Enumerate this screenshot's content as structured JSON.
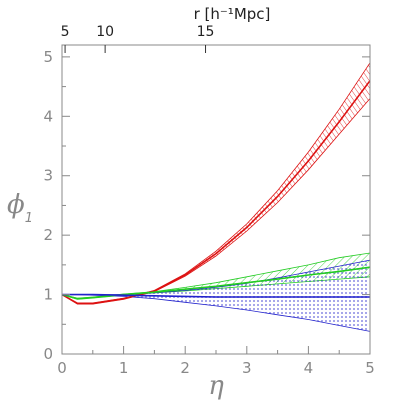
{
  "chart_data": {
    "type": "line",
    "title": "",
    "xlabel": "η",
    "ylabel_symbol": "ϕ",
    "ylabel_subscript": "1",
    "top_axis_label": "r [h⁻¹Mpc]",
    "xlim": [
      0,
      5
    ],
    "ylim": [
      0,
      5.2
    ],
    "x_ticks": [
      0,
      1,
      2,
      3,
      4,
      5
    ],
    "y_ticks": [
      0,
      1,
      2,
      3,
      4,
      5
    ],
    "top_ticks": [
      {
        "label": "5",
        "eta": 0.05
      },
      {
        "label": "10",
        "eta": 0.7
      },
      {
        "label": "15",
        "eta": 2.33
      }
    ],
    "grid": false,
    "legend": "none",
    "series": [
      {
        "color": "#dd1111",
        "x": [
          0,
          0.25,
          0.5,
          1.0,
          1.5,
          2.0,
          2.5,
          3.0,
          3.5,
          4.0,
          4.5,
          5.0
        ],
        "y": [
          1.0,
          0.85,
          0.85,
          0.93,
          1.06,
          1.33,
          1.69,
          2.13,
          2.65,
          3.25,
          3.91,
          4.6
        ],
        "band_low": [
          1.0,
          0.84,
          0.84,
          0.92,
          1.05,
          1.31,
          1.65,
          2.07,
          2.55,
          3.1,
          3.7,
          4.3
        ],
        "band_high": [
          1.0,
          0.86,
          0.86,
          0.94,
          1.07,
          1.35,
          1.73,
          2.19,
          2.75,
          3.4,
          4.12,
          4.9
        ]
      },
      {
        "color": "#22cc22",
        "x": [
          0,
          0.25,
          0.5,
          1.0,
          1.5,
          2.0,
          2.5,
          3.0,
          3.5,
          4.0,
          4.5,
          5.0
        ],
        "y": [
          1.0,
          0.93,
          0.95,
          1.0,
          1.04,
          1.09,
          1.14,
          1.2,
          1.26,
          1.33,
          1.39,
          1.46
        ],
        "band_low": [
          1.0,
          0.92,
          0.94,
          0.99,
          1.03,
          1.06,
          1.1,
          1.14,
          1.18,
          1.22,
          1.26,
          1.3
        ],
        "band_high": [
          1.0,
          0.94,
          0.96,
          1.01,
          1.05,
          1.12,
          1.2,
          1.3,
          1.4,
          1.5,
          1.62,
          1.7
        ]
      },
      {
        "color": "#2222cc",
        "x": [
          0,
          0.25,
          0.5,
          1.0,
          1.5,
          2.0,
          2.5,
          3.0,
          3.5,
          4.0,
          4.5,
          5.0
        ],
        "y": [
          1.0,
          1.0,
          1.0,
          0.99,
          0.98,
          0.97,
          0.96,
          0.96,
          0.96,
          0.96,
          0.96,
          0.96
        ],
        "band_low": [
          1.0,
          1.0,
          0.99,
          0.97,
          0.93,
          0.87,
          0.81,
          0.74,
          0.66,
          0.58,
          0.48,
          0.38
        ],
        "band_high": [
          1.0,
          1.0,
          1.0,
          1.0,
          1.03,
          1.07,
          1.12,
          1.19,
          1.28,
          1.38,
          1.48,
          1.58
        ]
      }
    ]
  }
}
